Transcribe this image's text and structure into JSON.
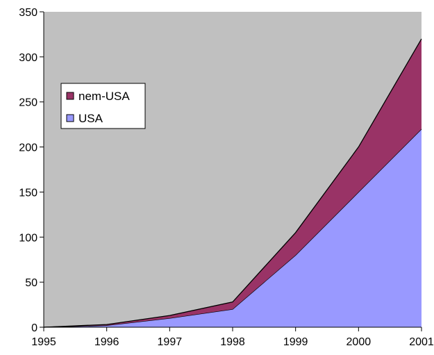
{
  "chart_data": {
    "type": "area",
    "stacked": true,
    "x": [
      1995,
      1996,
      1997,
      1998,
      1999,
      2000,
      2001
    ],
    "series": [
      {
        "name": "USA",
        "values": [
          0,
          2,
          10,
          20,
          80,
          150,
          220
        ],
        "color": "#9999ff"
      },
      {
        "name": "nem-USA",
        "values": [
          0,
          1,
          3,
          8,
          25,
          50,
          100
        ],
        "color": "#993366"
      }
    ],
    "ylim": [
      0,
      350
    ],
    "yticks": [
      0,
      50,
      100,
      150,
      200,
      250,
      300,
      350
    ],
    "xticks": [
      1995,
      1996,
      1997,
      1998,
      1999,
      2000,
      2001
    ],
    "plot_background": "#c0c0c0",
    "grid": false,
    "legend": {
      "position": "left",
      "order": [
        "nem-USA",
        "USA"
      ]
    }
  }
}
